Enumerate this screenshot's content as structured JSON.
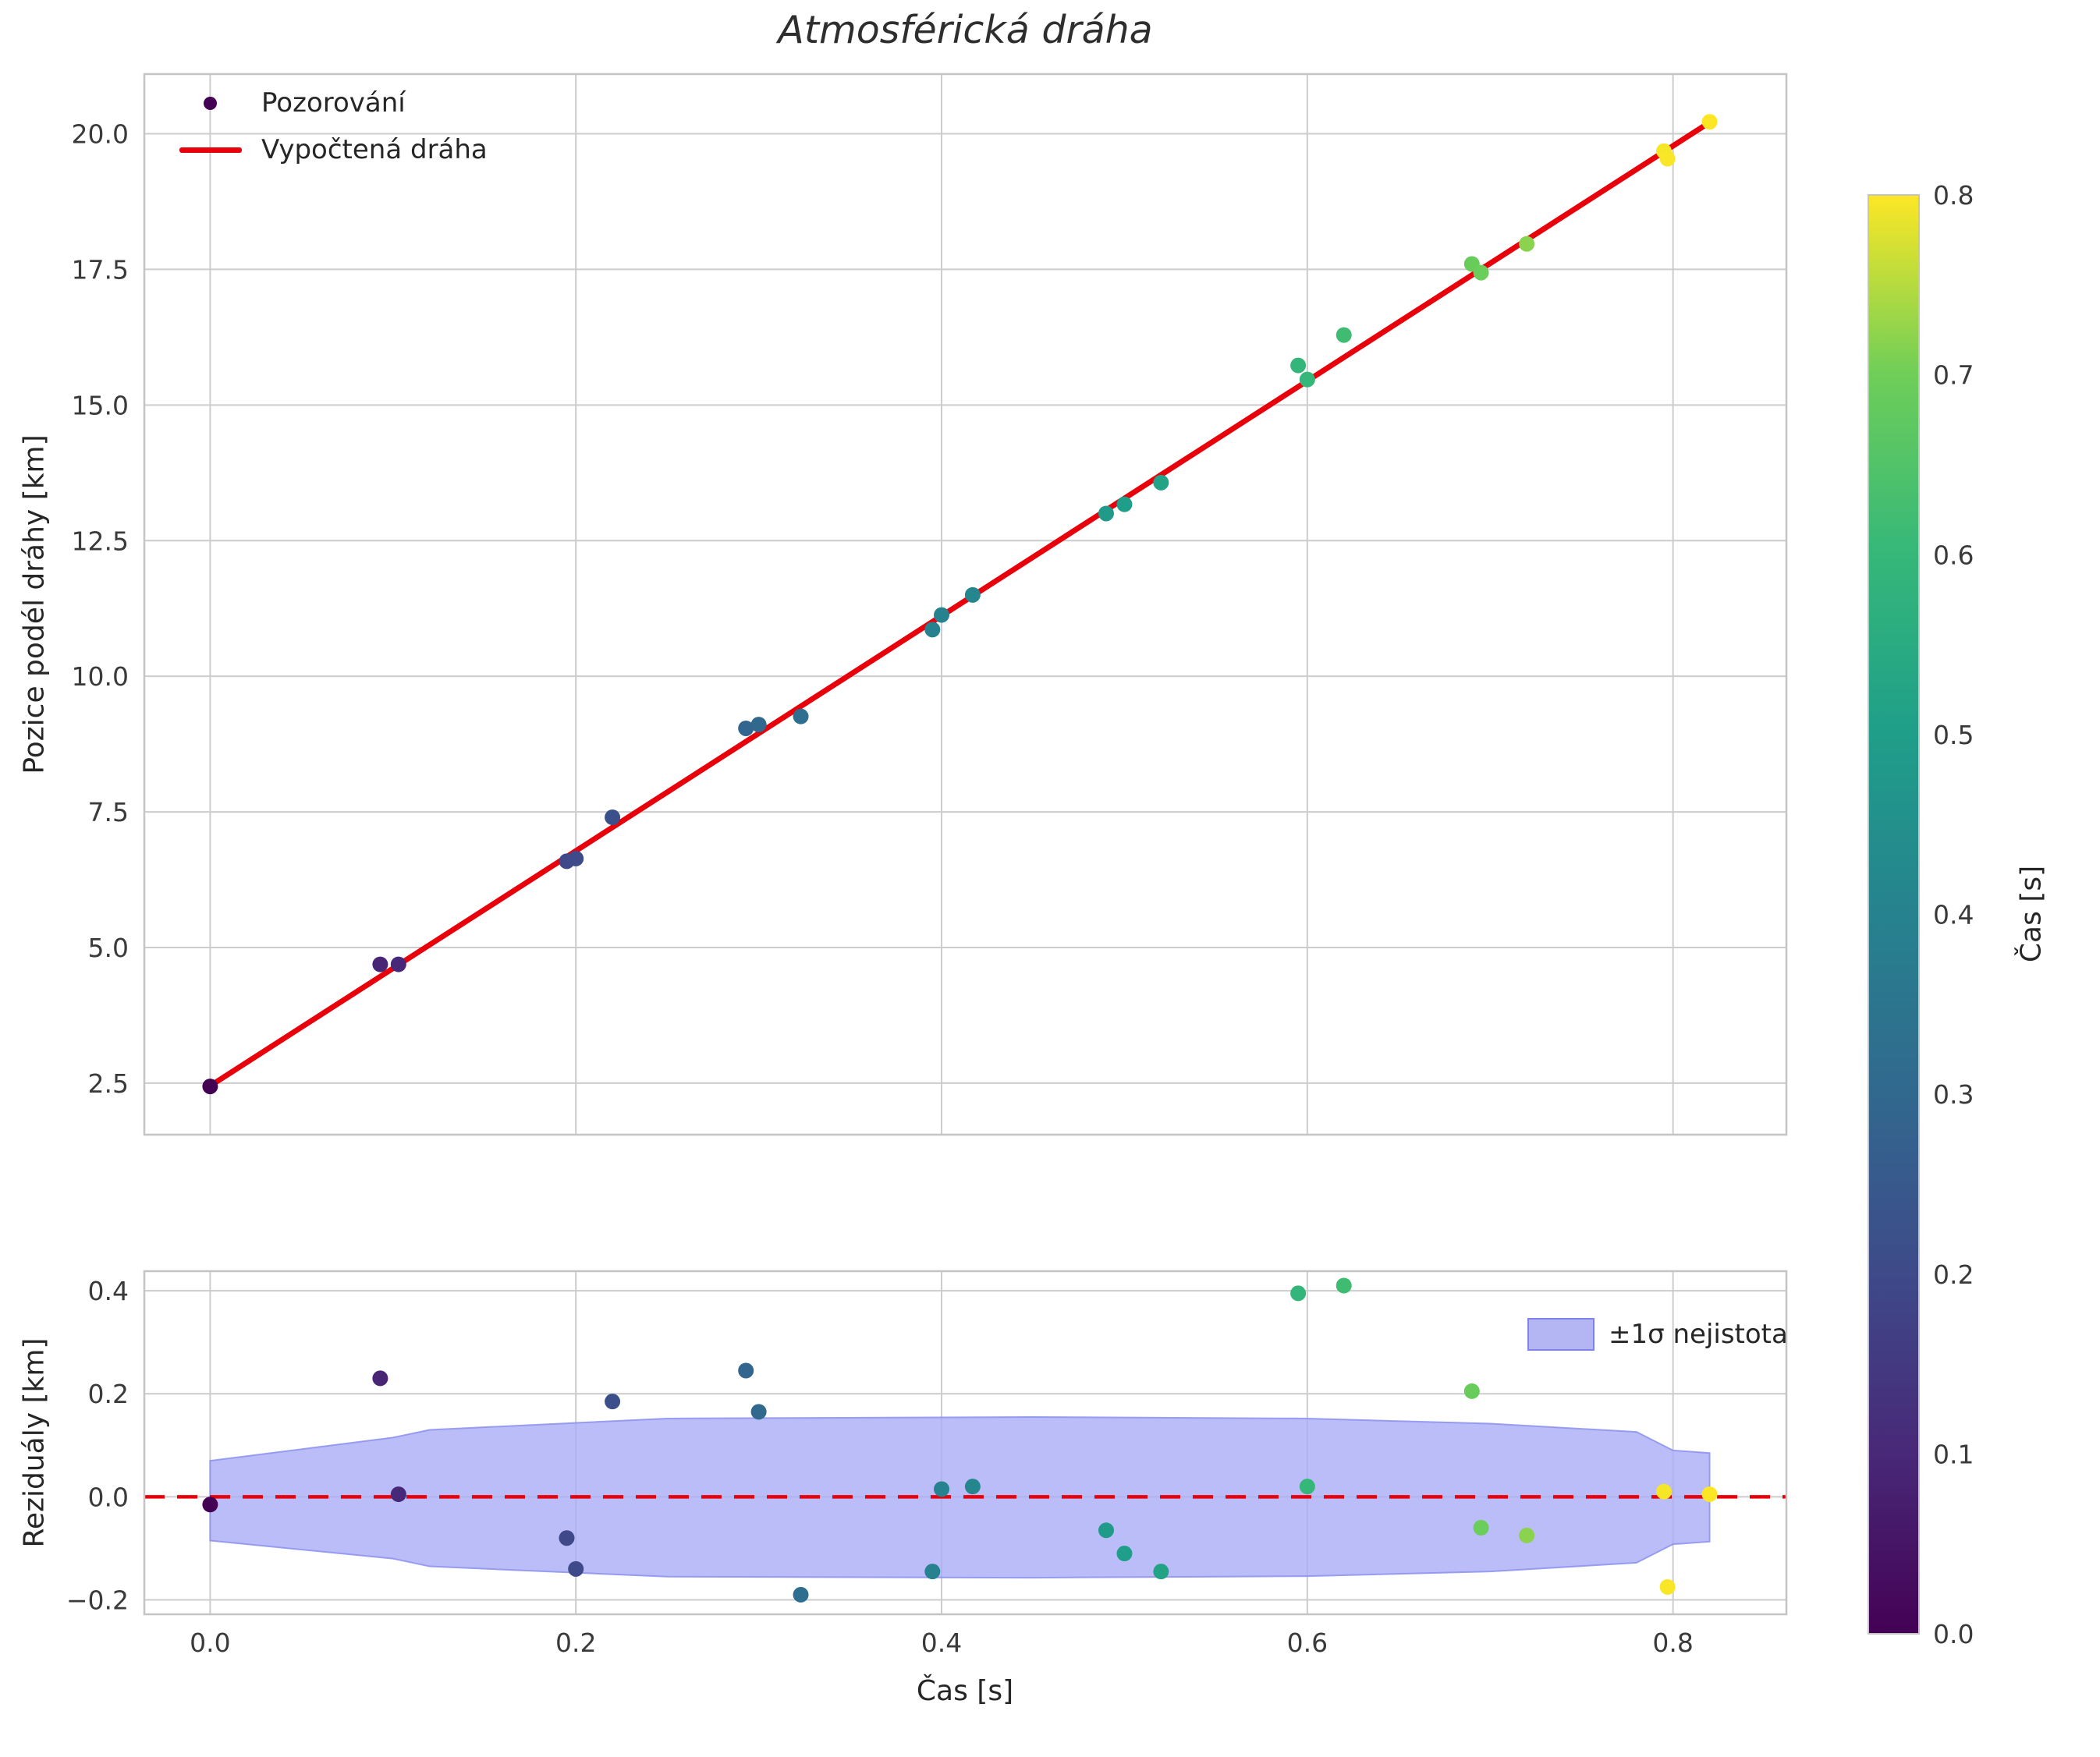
{
  "title": "Atmosférická dráha",
  "style": {
    "grid": "#cccccc",
    "spine": "#c4c4c4",
    "text": "#262626",
    "background": "#ffffff",
    "marker_radius": 10
  },
  "chart_data": [
    {
      "id": "trajectory",
      "type": "scatter",
      "title": "Atmosférická dráha",
      "ylabel": "Pozice podél dráhy [km]",
      "xlim": [
        -0.036,
        0.862
      ],
      "ylim": [
        1.55,
        21.1
      ],
      "yticks": [
        2.5,
        5.0,
        7.5,
        10.0,
        12.5,
        15.0,
        17.5,
        20.0
      ],
      "xticks": [
        0.0,
        0.2,
        0.4,
        0.6,
        0.8
      ],
      "show_x_tick_labels": false,
      "grid": true,
      "legend_position": "upper-left",
      "legend": [
        {
          "label": "Pozorování",
          "type": "marker",
          "color": "#440154"
        },
        {
          "label": "Vypočtená dráha",
          "type": "line",
          "color": "#e8000b"
        }
      ],
      "fit_line": {
        "x": [
          0.0,
          0.82
        ],
        "y": [
          2.45,
          20.21
        ],
        "color": "#e8000b"
      }
    },
    {
      "id": "residuals",
      "type": "scatter",
      "ylabel": "Reziduály [km]",
      "xlabel": "Čas [s]",
      "xlim": [
        -0.036,
        0.862
      ],
      "ylim": [
        -0.228,
        0.438
      ],
      "yticks": [
        -0.2,
        0.0,
        0.2,
        0.4
      ],
      "xticks": [
        0.0,
        0.2,
        0.4,
        0.6,
        0.8
      ],
      "show_x_tick_labels": true,
      "grid": true,
      "legend_position": "upper-right",
      "legend": [
        {
          "label": "±1σ nejistota",
          "type": "patch",
          "color": "#b4b6f3",
          "edge": "#7e83ec"
        }
      ],
      "zero_line": {
        "y": 0.0,
        "color": "#e8000b",
        "style": "dashed"
      },
      "band": {
        "t": [
          0.0,
          0.1,
          0.12,
          0.25,
          0.45,
          0.6,
          0.7,
          0.78,
          0.8,
          0.82
        ],
        "upper": [
          0.07,
          0.115,
          0.13,
          0.152,
          0.155,
          0.152,
          0.142,
          0.126,
          0.09,
          0.085
        ],
        "lower": [
          -0.085,
          -0.12,
          -0.135,
          -0.155,
          -0.157,
          -0.154,
          -0.145,
          -0.128,
          -0.092,
          -0.087
        ],
        "fill": "#a9acf5",
        "edge": "#8b90ee"
      }
    }
  ],
  "observations": [
    {
      "t": 0.0,
      "y": 2.44,
      "res": -0.015
    },
    {
      "t": 0.093,
      "y": 4.69,
      "res": 0.23
    },
    {
      "t": 0.103,
      "y": 4.69,
      "res": 0.005
    },
    {
      "t": 0.195,
      "y": 6.59,
      "res": -0.08
    },
    {
      "t": 0.2,
      "y": 6.64,
      "res": -0.14
    },
    {
      "t": 0.22,
      "y": 7.4,
      "res": 0.185
    },
    {
      "t": 0.293,
      "y": 9.04,
      "res": 0.245
    },
    {
      "t": 0.3,
      "y": 9.11,
      "res": 0.165
    },
    {
      "t": 0.323,
      "y": 9.26,
      "res": -0.19
    },
    {
      "t": 0.395,
      "y": 10.86,
      "res": -0.145
    },
    {
      "t": 0.4,
      "y": 11.13,
      "res": 0.015
    },
    {
      "t": 0.417,
      "y": 11.5,
      "res": 0.02
    },
    {
      "t": 0.49,
      "y": 13.0,
      "res": -0.065
    },
    {
      "t": 0.5,
      "y": 13.17,
      "res": -0.11
    },
    {
      "t": 0.52,
      "y": 13.57,
      "res": -0.145
    },
    {
      "t": 0.595,
      "y": 15.73,
      "res": 0.395
    },
    {
      "t": 0.6,
      "y": 15.47,
      "res": 0.02
    },
    {
      "t": 0.62,
      "y": 16.29,
      "res": 0.41
    },
    {
      "t": 0.69,
      "y": 17.6,
      "res": 0.205
    },
    {
      "t": 0.695,
      "y": 17.44,
      "res": -0.06
    },
    {
      "t": 0.72,
      "y": 17.97,
      "res": -0.075
    },
    {
      "t": 0.795,
      "y": 19.68,
      "res": 0.01
    },
    {
      "t": 0.797,
      "y": 19.54,
      "res": -0.175
    },
    {
      "t": 0.82,
      "y": 20.22,
      "res": 0.005
    }
  ],
  "colorbar": {
    "label": "Čas [s]",
    "min": 0.0,
    "max": 0.8,
    "ticks": [
      0.0,
      0.1,
      0.2,
      0.3,
      0.4,
      0.5,
      0.6,
      0.7,
      0.8
    ],
    "colormap": "viridis"
  }
}
